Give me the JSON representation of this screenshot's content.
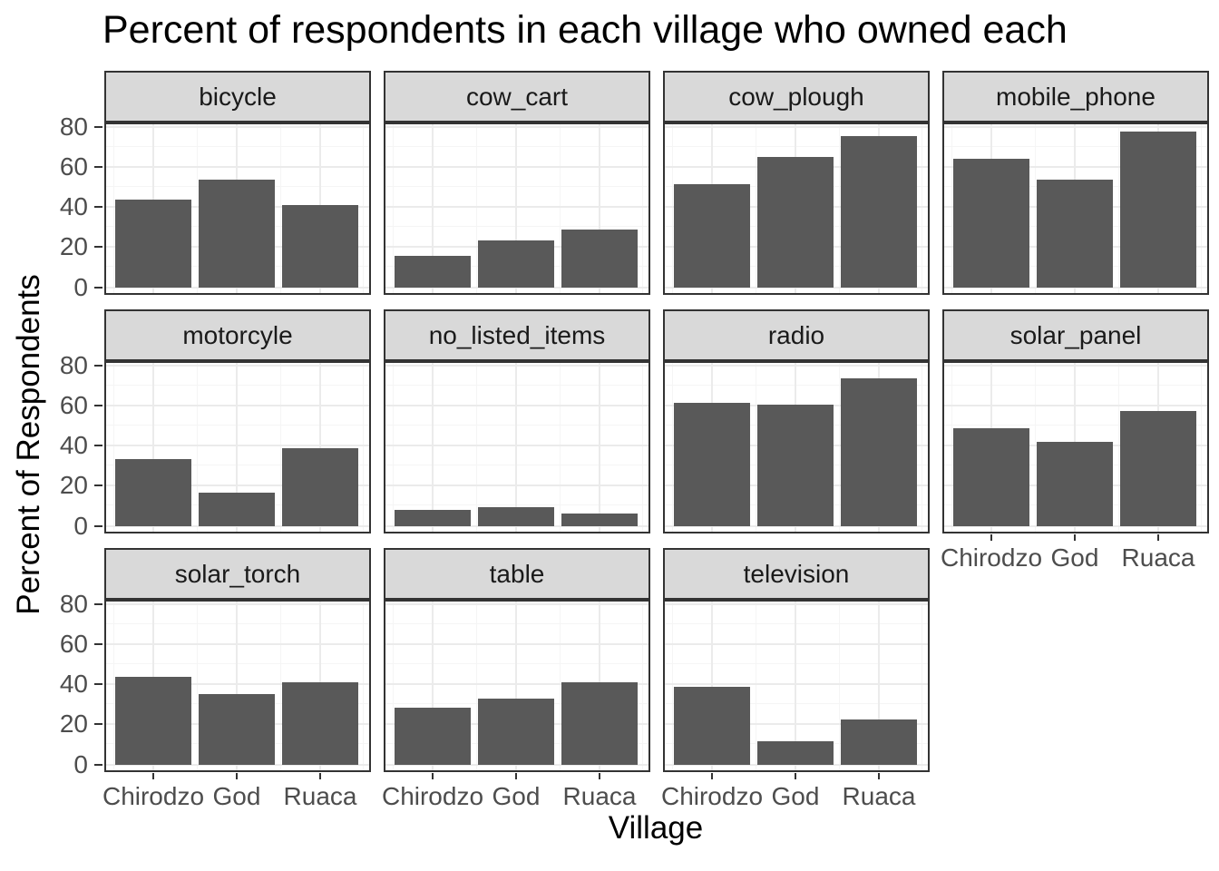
{
  "title": "Percent of respondents in each village who owned each",
  "axes": {
    "x_title": "Village",
    "y_title": "Percent of Respondents",
    "x_categories": [
      "Chirodzo",
      "God",
      "Ruaca"
    ],
    "y_tick_labels": [
      "0",
      "20",
      "40",
      "60",
      "80"
    ]
  },
  "colors": {
    "bar_fill": "#595959",
    "strip_background": "#d9d9d9",
    "panel_border": "#333333",
    "grid_major": "#ebebeb",
    "grid_minor": "#f5f5f5",
    "tick_label": "#4d4d4d",
    "title_text": "#000000"
  },
  "chart_data": {
    "type": "bar",
    "title": "Percent of respondents in each village who owned each",
    "xlabel": "Village",
    "ylabel": "Percent of Respondents",
    "categories": [
      "Chirodzo",
      "God",
      "Ruaca"
    ],
    "y_ticks": [
      0,
      20,
      40,
      60,
      80
    ],
    "y_minor_ticks": [
      10,
      30,
      50,
      70
    ],
    "ylim": [
      0,
      82
    ],
    "grid": "major and minor, both axes",
    "legend_position": "none",
    "facet_layout": "4 columns x 3 rows, 11 facets",
    "facets": [
      {
        "label": "bicycle",
        "values": [
          43.6,
          53.5,
          40.8
        ]
      },
      {
        "label": "cow_cart",
        "values": [
          15.4,
          23.3,
          28.6
        ]
      },
      {
        "label": "cow_plough",
        "values": [
          51.3,
          65.1,
          75.5
        ]
      },
      {
        "label": "mobile_phone",
        "values": [
          64.1,
          53.5,
          77.6
        ]
      },
      {
        "label": "motorcyle",
        "values": [
          33.3,
          16.3,
          38.8
        ]
      },
      {
        "label": "no_listed_items",
        "values": [
          7.7,
          9.3,
          6.1
        ]
      },
      {
        "label": "radio",
        "values": [
          61.5,
          60.5,
          73.5
        ]
      },
      {
        "label": "solar_panel",
        "values": [
          48.7,
          41.9,
          57.1
        ]
      },
      {
        "label": "solar_torch",
        "values": [
          43.6,
          34.9,
          40.8
        ]
      },
      {
        "label": "table",
        "values": [
          28.2,
          32.6,
          40.8
        ]
      },
      {
        "label": "television",
        "values": [
          38.5,
          11.6,
          22.4
        ]
      }
    ]
  }
}
